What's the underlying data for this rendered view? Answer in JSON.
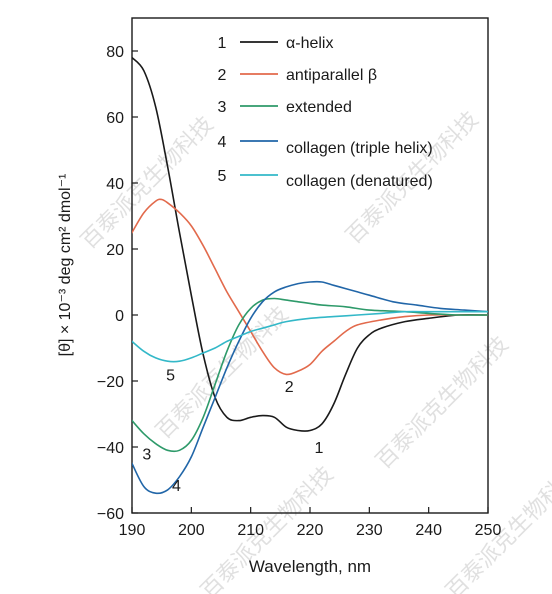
{
  "chart_data": {
    "type": "line",
    "title": "",
    "xlabel": "Wavelength, nm",
    "ylabel": "[θ] × 10⁻³ deg cm² dmol⁻¹",
    "xlim": [
      190,
      250
    ],
    "ylim": [
      -60,
      90
    ],
    "x_ticks": [
      190,
      200,
      210,
      220,
      230,
      240,
      250
    ],
    "y_ticks": [
      80,
      60,
      40,
      20,
      0,
      -20,
      -40,
      -60
    ],
    "grid": false,
    "legend_position": "top",
    "series": [
      {
        "id": "1",
        "name": "α-helix",
        "color": "#1a1a1a",
        "x": [
          190,
          192,
          194,
          196,
          198,
          200,
          202,
          204,
          206,
          208,
          210,
          212,
          214,
          216,
          218,
          220,
          222,
          224,
          226,
          228,
          230,
          232,
          236,
          240,
          245,
          250
        ],
        "y": [
          78,
          74,
          63,
          45,
          25,
          6,
          -12,
          -25,
          -31,
          -32,
          -31,
          -30.5,
          -31,
          -34,
          -35,
          -35,
          -33,
          -27,
          -18,
          -10,
          -6,
          -4,
          -2,
          -1,
          0,
          0
        ]
      },
      {
        "id": "2",
        "name": "antiparallel β",
        "color": "#e26a4c",
        "x": [
          190,
          192,
          194,
          195,
          196,
          198,
          200,
          202,
          204,
          206,
          208,
          210,
          212,
          214,
          216,
          218,
          220,
          222,
          224,
          226,
          228,
          232,
          236,
          240,
          245,
          250
        ],
        "y": [
          25,
          31,
          34.5,
          35,
          34,
          31,
          27,
          21,
          14,
          7,
          1,
          -5,
          -11,
          -16,
          -18,
          -17,
          -15,
          -11,
          -8,
          -5,
          -3,
          -1.5,
          -0.5,
          0,
          0,
          0
        ]
      },
      {
        "id": "3",
        "name": "extended",
        "color": "#2e9a6a",
        "x": [
          190,
          192,
          194,
          196,
          198,
          200,
          202,
          204,
          206,
          208,
          210,
          212,
          214,
          216,
          218,
          220,
          222,
          226,
          230,
          236,
          240,
          245,
          250
        ],
        "y": [
          -32,
          -36,
          -39,
          -41,
          -41,
          -38,
          -31,
          -21,
          -11,
          -3,
          2,
          4.5,
          5,
          4.5,
          4,
          3.5,
          3,
          2.5,
          1.5,
          1,
          0.5,
          0,
          0
        ]
      },
      {
        "id": "4",
        "name": "collagen (triple helix)",
        "color": "#2166a8",
        "x": [
          190,
          192,
          194,
          196,
          198,
          200,
          202,
          204,
          206,
          208,
          210,
          212,
          214,
          216,
          218,
          220,
          222,
          224,
          226,
          228,
          230,
          234,
          238,
          242,
          246,
          250
        ],
        "y": [
          -45,
          -52,
          -54,
          -53,
          -49,
          -43,
          -34,
          -25,
          -16,
          -8,
          -1,
          4,
          7,
          8.5,
          9.5,
          10,
          10,
          9,
          8,
          7,
          6,
          4,
          3,
          2,
          1.5,
          1
        ]
      },
      {
        "id": "5",
        "name": "collagen (denatured)",
        "color": "#33b8c8",
        "x": [
          190,
          192,
          194,
          196,
          198,
          200,
          202,
          204,
          206,
          208,
          210,
          212,
          214,
          216,
          220,
          224,
          228,
          232,
          236,
          240,
          245,
          250
        ],
        "y": [
          -8,
          -11,
          -13,
          -14,
          -14,
          -13,
          -11.5,
          -10,
          -8,
          -6.5,
          -5,
          -4,
          -3,
          -2,
          -1,
          -0.5,
          0,
          0.5,
          1,
          1,
          1,
          1
        ]
      }
    ],
    "curve_labels": [
      {
        "text": "1",
        "x": 221.5,
        "y": -40
      },
      {
        "text": "2",
        "x": 216.5,
        "y": -21.5
      },
      {
        "text": "3",
        "x": 192.5,
        "y": -42
      },
      {
        "text": "4",
        "x": 197.5,
        "y": -51.5
      },
      {
        "text": "5",
        "x": 196.5,
        "y": -18
      }
    ]
  },
  "legend_numbers": [
    "1",
    "2",
    "3",
    "4",
    "5"
  ],
  "watermarks": [
    "百泰派克生物科技",
    "百泰派克生物科技",
    "百泰派克生物科技",
    "百泰派克生物科技",
    "百泰派克生物科技",
    "百泰派克生物科技"
  ]
}
